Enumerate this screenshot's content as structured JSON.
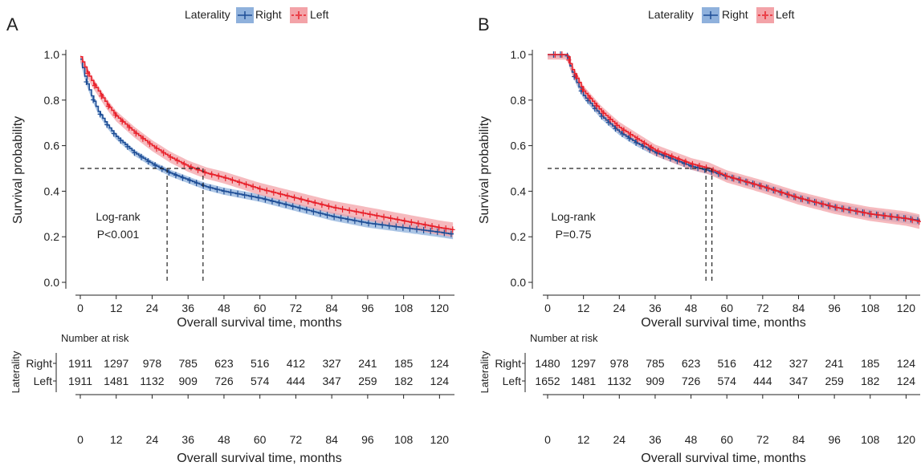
{
  "legend_title": "Laterality",
  "risk_title": "Number at risk",
  "risk_ylabel": "Laterality",
  "colors": {
    "right": "#1f4e96",
    "left": "#e8212b",
    "right_band": "#8fb1dc",
    "left_band": "#f3a3a8"
  },
  "chart_data": [
    {
      "panel": "A",
      "type": "line",
      "xlabel": "Overall survival time, months",
      "ylabel": "Survival probability",
      "xlim": [
        0,
        125
      ],
      "ylim": [
        0,
        1.0
      ],
      "xticks": [
        0,
        12,
        24,
        36,
        48,
        60,
        72,
        84,
        96,
        108,
        120
      ],
      "yticks": [
        "0.0",
        "0.2",
        "0.4",
        "0.6",
        "0.8",
        "1.0"
      ],
      "legend": {
        "placement": "top-center",
        "entries": [
          "Right",
          "Left"
        ]
      },
      "series": [
        {
          "name": "Right",
          "x": [
            0,
            2,
            4,
            6,
            9,
            12,
            18,
            24,
            30,
            36,
            42,
            48,
            60,
            72,
            84,
            96,
            108,
            120,
            125
          ],
          "y": [
            0.98,
            0.88,
            0.81,
            0.75,
            0.69,
            0.64,
            0.57,
            0.52,
            0.48,
            0.45,
            0.42,
            0.4,
            0.37,
            0.33,
            0.29,
            0.26,
            0.24,
            0.22,
            0.21
          ]
        },
        {
          "name": "Left",
          "x": [
            0,
            2,
            4,
            6,
            9,
            12,
            18,
            24,
            30,
            36,
            42,
            48,
            60,
            72,
            84,
            96,
            108,
            120,
            125
          ],
          "y": [
            0.99,
            0.93,
            0.88,
            0.84,
            0.78,
            0.73,
            0.66,
            0.6,
            0.55,
            0.51,
            0.48,
            0.46,
            0.41,
            0.37,
            0.33,
            0.3,
            0.27,
            0.24,
            0.23
          ]
        }
      ],
      "median_line": 0.5,
      "medians": [
        29,
        41
      ],
      "annotation": [
        "Log-rank",
        "P<0.001"
      ],
      "risk_table": {
        "rows": [
          {
            "label": "Right",
            "values": [
              1911,
              1297,
              978,
              785,
              623,
              516,
              412,
              327,
              241,
              185,
              124
            ]
          },
          {
            "label": "Left",
            "values": [
              1911,
              1481,
              1132,
              909,
              726,
              574,
              444,
              347,
              259,
              182,
              124
            ]
          }
        ]
      }
    },
    {
      "panel": "B",
      "type": "line",
      "xlabel": "Overall survival time, months",
      "ylabel": "Survival probability",
      "xlim": [
        0,
        125
      ],
      "ylim": [
        0,
        1.0
      ],
      "xticks": [
        0,
        12,
        24,
        36,
        48,
        60,
        72,
        84,
        96,
        108,
        120
      ],
      "yticks": [
        "0.0",
        "0.2",
        "0.4",
        "0.6",
        "0.8",
        "1.0"
      ],
      "legend": {
        "placement": "top-center",
        "entries": [
          "Right",
          "Left"
        ]
      },
      "series": [
        {
          "name": "Right",
          "x": [
            0,
            6.5,
            7,
            8,
            10,
            12,
            18,
            24,
            30,
            36,
            42,
            48,
            54,
            60,
            72,
            84,
            96,
            108,
            120,
            125
          ],
          "y": [
            1.0,
            1.0,
            0.97,
            0.93,
            0.87,
            0.82,
            0.73,
            0.66,
            0.61,
            0.57,
            0.54,
            0.51,
            0.49,
            0.465,
            0.42,
            0.37,
            0.33,
            0.3,
            0.28,
            0.27
          ]
        },
        {
          "name": "Left",
          "x": [
            0,
            6.5,
            7,
            8,
            10,
            12,
            18,
            24,
            30,
            36,
            42,
            48,
            54,
            60,
            72,
            84,
            96,
            108,
            120,
            125
          ],
          "y": [
            1.0,
            1.0,
            0.98,
            0.94,
            0.89,
            0.84,
            0.75,
            0.68,
            0.63,
            0.58,
            0.55,
            0.52,
            0.5,
            0.465,
            0.42,
            0.37,
            0.33,
            0.3,
            0.28,
            0.265
          ]
        }
      ],
      "median_line": 0.5,
      "medians": [
        53,
        55
      ],
      "annotation": [
        "Log-rank",
        "P=0.75"
      ],
      "risk_table": {
        "rows": [
          {
            "label": "Right",
            "values": [
              1480,
              1297,
              978,
              785,
              623,
              516,
              412,
              327,
              241,
              185,
              124
            ]
          },
          {
            "label": "Left",
            "values": [
              1652,
              1481,
              1132,
              909,
              726,
              574,
              444,
              347,
              259,
              182,
              124
            ]
          }
        ]
      }
    }
  ]
}
